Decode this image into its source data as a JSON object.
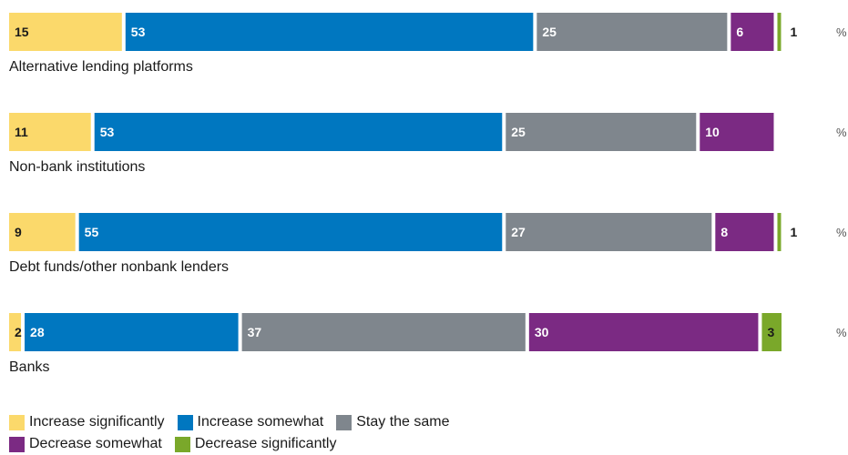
{
  "chart_data": {
    "type": "bar",
    "orientation": "horizontal",
    "stacked": true,
    "unit": "%",
    "categories": [
      "Alternative lending platforms",
      "Non-bank institutions",
      "Debt funds/other nonbank lenders",
      "Banks"
    ],
    "series": [
      {
        "name": "Increase significantly",
        "color": "#fbd96b",
        "label_color": "#1a1a1a",
        "values": [
          15,
          11,
          9,
          2
        ]
      },
      {
        "name": "Increase somewhat",
        "color": "#0077c0",
        "label_color": "#ffffff",
        "values": [
          53,
          53,
          55,
          28
        ]
      },
      {
        "name": "Stay the same",
        "color": "#7f868d",
        "label_color": "#ffffff",
        "values": [
          25,
          25,
          27,
          37
        ]
      },
      {
        "name": "Decrease somewhat",
        "color": "#7b2a83",
        "label_color": "#ffffff",
        "values": [
          6,
          10,
          8,
          30
        ]
      },
      {
        "name": "Decrease significantly",
        "color": "#7aa82a",
        "label_color": "#1a1a1a",
        "values": [
          1,
          0,
          1,
          3
        ]
      }
    ],
    "xlim": [
      0,
      100
    ],
    "grid": false,
    "legend_position": "bottom-left"
  }
}
